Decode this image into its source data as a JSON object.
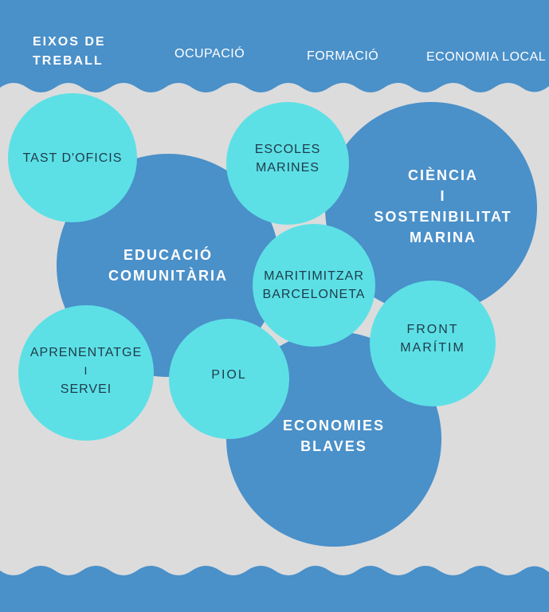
{
  "colors": {
    "background": "#dcdcdc",
    "wave": "#4a90c9",
    "big_circle": "#4a90c9",
    "small_circle": "#5ce0e6",
    "big_text": "#ffffff",
    "small_text": "#1f3b4a"
  },
  "header": {
    "title_line1": "EIXOS DE",
    "title_line2": "TREBALL",
    "axis1": "OCUPACIÓ",
    "axis2": "FORMACIÓ",
    "axis3": "ECONOMIA LOCAL"
  },
  "circles": {
    "educacio": {
      "line1": "EDUCACIÓ",
      "line2": "COMUNITÀRIA"
    },
    "ciencia": {
      "line1": "CIÈNCIA",
      "line2": "I",
      "line3": "SOSTENIBILITAT",
      "line4": "MARINA"
    },
    "economies": {
      "line1": "ECONOMIES",
      "line2": "BLAVES"
    },
    "tast": {
      "line1": "TAST D'OFICIS"
    },
    "escoles": {
      "line1": "ESCOLES",
      "line2": "MARINES"
    },
    "maritimitzar": {
      "line1": "MARITIMITZAR",
      "line2": "BARCELONETA"
    },
    "front": {
      "line1": "FRONT",
      "line2": "MARÍTIM"
    },
    "aprenentatge": {
      "line1": "APRENENTATGE",
      "line2": "I",
      "line3": "SERVEI"
    },
    "piol": {
      "line1": "PIOL"
    }
  }
}
